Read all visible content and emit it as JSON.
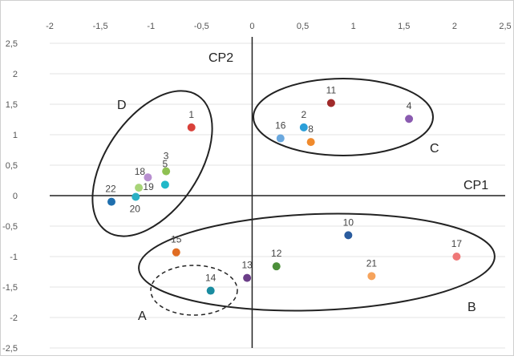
{
  "chart_data": {
    "type": "scatter",
    "title": "",
    "xlabel": "CP1",
    "ylabel": "CP2",
    "xlim": [
      -2,
      2.5
    ],
    "ylim": [
      -2.5,
      2.5
    ],
    "x_ticks": [
      "-2",
      "-1,5",
      "-1",
      "-0,5",
      "0",
      "0,5",
      "1",
      "1,5",
      "2",
      "2,5"
    ],
    "y_ticks": [
      "2,5",
      "2",
      "1,5",
      "1",
      "0,5",
      "0",
      "-0,5",
      "-1",
      "-1,5",
      "-2",
      "-2,5"
    ],
    "x_tick_values": [
      -2,
      -1.5,
      -1,
      -0.5,
      0,
      0.5,
      1,
      1.5,
      2,
      2.5
    ],
    "y_tick_values": [
      2.5,
      2,
      1.5,
      1,
      0.5,
      0,
      -0.5,
      -1,
      -1.5,
      -2,
      -2.5
    ],
    "grid": "horizontal",
    "points": [
      {
        "label": "1",
        "x": -0.6,
        "y": 1.12,
        "color": "#d9413a"
      },
      {
        "label": "2",
        "x": 0.51,
        "y": 1.12,
        "color": "#2b9fd9"
      },
      {
        "label": "3",
        "x": -0.85,
        "y": 0.4,
        "color": "#8fc152"
      },
      {
        "label": "5",
        "x": -0.86,
        "y": 0.18,
        "color": "#20b8c8"
      },
      {
        "label": "8",
        "x": 0.58,
        "y": 0.88,
        "color": "#f08a2c"
      },
      {
        "label": "10",
        "x": 0.95,
        "y": -0.65,
        "color": "#2a5c9e"
      },
      {
        "label": "11",
        "x": 0.78,
        "y": 1.52,
        "color": "#a02a2a"
      },
      {
        "label": "12",
        "x": 0.24,
        "y": -1.16,
        "color": "#4c8f3a"
      },
      {
        "label": "13",
        "x": -0.05,
        "y": -1.35,
        "color": "#6b3e88"
      },
      {
        "label": "14",
        "x": -0.41,
        "y": -1.56,
        "color": "#1a8ca0"
      },
      {
        "label": "15",
        "x": -0.75,
        "y": -0.93,
        "color": "#e06c22"
      },
      {
        "label": "16",
        "x": 0.28,
        "y": 0.94,
        "color": "#6aa8de"
      },
      {
        "label": "17",
        "x": 2.02,
        "y": -1.0,
        "color": "#ef7878"
      },
      {
        "label": "18",
        "x": -1.03,
        "y": 0.3,
        "color": "#b88fd0"
      },
      {
        "label": "19",
        "x": -1.12,
        "y": 0.13,
        "color": "#a8d478"
      },
      {
        "label": "20",
        "x": -1.15,
        "y": -0.02,
        "color": "#2ab0c4"
      },
      {
        "label": "21",
        "x": 1.18,
        "y": -1.32,
        "color": "#f6a35c"
      },
      {
        "label": "22",
        "x": -1.39,
        "y": -0.1,
        "color": "#1f6fae"
      },
      {
        "label": "4",
        "x": 1.55,
        "y": 1.26,
        "color": "#8a5bb0"
      }
    ],
    "groups": [
      {
        "label": "A",
        "style": "dashed"
      },
      {
        "label": "B",
        "style": "solid"
      },
      {
        "label": "C",
        "style": "solid"
      },
      {
        "label": "D",
        "style": "solid"
      }
    ]
  }
}
